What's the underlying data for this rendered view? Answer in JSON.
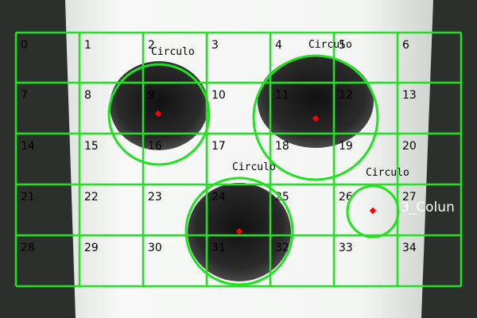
{
  "cells": [
    "0",
    "1",
    "2",
    "3",
    "4",
    "5",
    "6",
    "7",
    "8",
    "9",
    "10",
    "11",
    "12",
    "13",
    "14",
    "15",
    "16",
    "17",
    "18",
    "19",
    "20",
    "21",
    "22",
    "23",
    "24",
    "25",
    "26",
    "27",
    "28",
    "29",
    "30",
    "31",
    "32",
    "33",
    "34"
  ],
  "detections": [
    {
      "label": "Circulo"
    },
    {
      "label": "Circulo"
    },
    {
      "label": "Circulo"
    },
    {
      "label": "Circulo"
    }
  ],
  "overlay_text": "3_Colun",
  "colors": {
    "grid": "#22e022",
    "center_marker": "#ff0000",
    "text": "#000000",
    "hole": "#1f1f1f",
    "background_light": "#f4f6f4",
    "background_dark": "#2b302d"
  }
}
